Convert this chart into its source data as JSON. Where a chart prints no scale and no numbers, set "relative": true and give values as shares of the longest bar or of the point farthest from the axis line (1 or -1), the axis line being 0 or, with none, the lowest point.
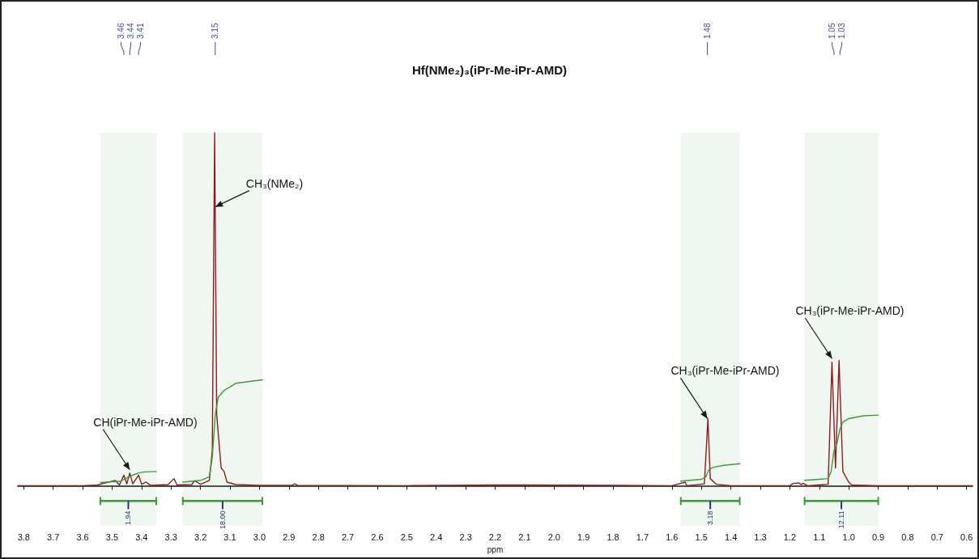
{
  "chart_data": {
    "type": "line",
    "relative": true,
    "title": "Hf(NMe₂)₃(iPr-Me-iPr-AMD)",
    "xlabel": "ppm",
    "xlim": [
      3.82,
      0.58
    ],
    "xticks": [
      3.8,
      3.7,
      3.6,
      3.5,
      3.4,
      3.3,
      3.2,
      3.1,
      {
        "value": 3.0,
        "label": "3.0"
      },
      2.9,
      2.8,
      2.7,
      2.6,
      2.5,
      2.4,
      2.3,
      2.2,
      2.1,
      {
        "value": 2.0,
        "label": "2.0"
      },
      1.9,
      1.8,
      1.7,
      1.6,
      1.5,
      1.4,
      1.3,
      1.2,
      1.1,
      {
        "value": 1.0,
        "label": "1.0"
      },
      0.9,
      0.8,
      0.7,
      0.6
    ],
    "grid": false,
    "marker": "none",
    "line_style": "solid",
    "series": [
      {
        "color": "#8b1c1c",
        "x": [
          3.82,
          3.6,
          3.55,
          3.49,
          3.475,
          3.46,
          3.45,
          3.44,
          3.43,
          3.41,
          3.4,
          3.385,
          3.37,
          3.31,
          3.29,
          3.28,
          3.23,
          3.22,
          3.2,
          3.17,
          3.16,
          3.152,
          3.145,
          3.13,
          3.12,
          3.11,
          3.08,
          3.0,
          2.89,
          2.88,
          2.87,
          2.5,
          2.2,
          2.1,
          1.6,
          1.555,
          1.55,
          1.49,
          1.478,
          1.47,
          1.45,
          1.4,
          1.2,
          1.19,
          1.17,
          1.16,
          1.155,
          1.14,
          1.07,
          1.057,
          1.045,
          1.033,
          1.02,
          1.0,
          0.99,
          0.9,
          0.58
        ],
        "values": [
          0,
          0,
          0.002,
          0.015,
          0.002,
          0.03,
          0.005,
          0.036,
          0.005,
          0.03,
          0.004,
          0.01,
          0.001,
          0.003,
          0.02,
          0.002,
          0.003,
          0.014,
          0.004,
          0.015,
          0.1,
          1,
          0.2,
          0.05,
          0.04,
          0.01,
          0.003,
          0.001,
          0.001,
          0.005,
          0.001,
          0,
          0.002,
          0.002,
          0,
          0.01,
          0,
          0.005,
          0.19,
          0.02,
          0.004,
          0,
          0,
          0.006,
          0.008,
          0.003,
          0.007,
          0,
          0.004,
          0.35,
          0.05,
          0.355,
          0.04,
          0.01,
          0.002,
          0,
          0
        ]
      },
      {
        "color": "#3a9a3a",
        "x": [
          3.54,
          3.47,
          3.45,
          3.43,
          3.41,
          3.39,
          3.35
        ],
        "values": [
          0.009,
          0.013,
          0.022,
          0.03,
          0.036,
          0.039,
          0.04
        ]
      },
      {
        "color": "#3a9a3a",
        "x": [
          3.26,
          3.2,
          3.17,
          3.16,
          3.15,
          3.14,
          3.12,
          3.08,
          2.99
        ],
        "values": [
          0.01,
          0.015,
          0.025,
          0.08,
          0.2,
          0.25,
          0.27,
          0.29,
          0.3
        ]
      },
      {
        "color": "#3a9a3a",
        "x": [
          1.57,
          1.5,
          1.485,
          1.475,
          1.46,
          1.42,
          1.37
        ],
        "values": [
          0.013,
          0.018,
          0.025,
          0.045,
          0.052,
          0.058,
          0.062
        ]
      },
      {
        "color": "#3a9a3a",
        "x": [
          1.15,
          1.07,
          1.06,
          1.05,
          1.04,
          1.03,
          1.02,
          1.0,
          0.95,
          0.9
        ],
        "values": [
          0.015,
          0.02,
          0.04,
          0.1,
          0.12,
          0.16,
          0.18,
          0.19,
          0.198,
          0.2
        ]
      }
    ],
    "ref_lines": [
      {
        "axis": "x",
        "value": 3.46,
        "label": "3.46",
        "color": "#4a4a9a"
      },
      {
        "axis": "x",
        "value": 3.44,
        "label": "3.44",
        "color": "#4a4a9a"
      },
      {
        "axis": "x",
        "value": 3.41,
        "label": "3.41",
        "color": "#4a4a9a"
      },
      {
        "axis": "x",
        "value": 3.15,
        "label": "3.15",
        "color": "#4a4a9a"
      },
      {
        "axis": "x",
        "value": 1.48,
        "label": "1.48",
        "color": "#4a4a9a"
      },
      {
        "axis": "x",
        "value": 1.05,
        "label": "1.05",
        "color": "#4a4a9a"
      },
      {
        "axis": "x",
        "value": 1.03,
        "label": "1.03",
        "color": "#4a4a9a"
      }
    ],
    "bands": [
      {
        "axis": "x",
        "from": 3.54,
        "to": 3.35,
        "label": "1.94",
        "color": "#3a9a3a"
      },
      {
        "axis": "x",
        "from": 3.26,
        "to": 2.99,
        "label": "18.00",
        "color": "#3a9a3a"
      },
      {
        "axis": "x",
        "from": 1.57,
        "to": 1.37,
        "label": "3.18",
        "color": "#3a9a3a"
      },
      {
        "axis": "x",
        "from": 1.15,
        "to": 0.9,
        "label": "12.11",
        "color": "#3a9a3a"
      }
    ],
    "annotations": [
      {
        "text": "CH(iPr-Me-iPr-AMD)",
        "x": 3.44,
        "y": 0.045
      },
      {
        "text": "CH₃(NMe₂)",
        "x": 3.15,
        "y": 0.79
      },
      {
        "text": "CH₃(iPr-Me-iPr-AMD)",
        "x": 1.48,
        "y": 0.19
      },
      {
        "text": "CH₃(iPr-Me-iPr-AMD)",
        "x": 1.057,
        "y": 0.36
      }
    ]
  }
}
